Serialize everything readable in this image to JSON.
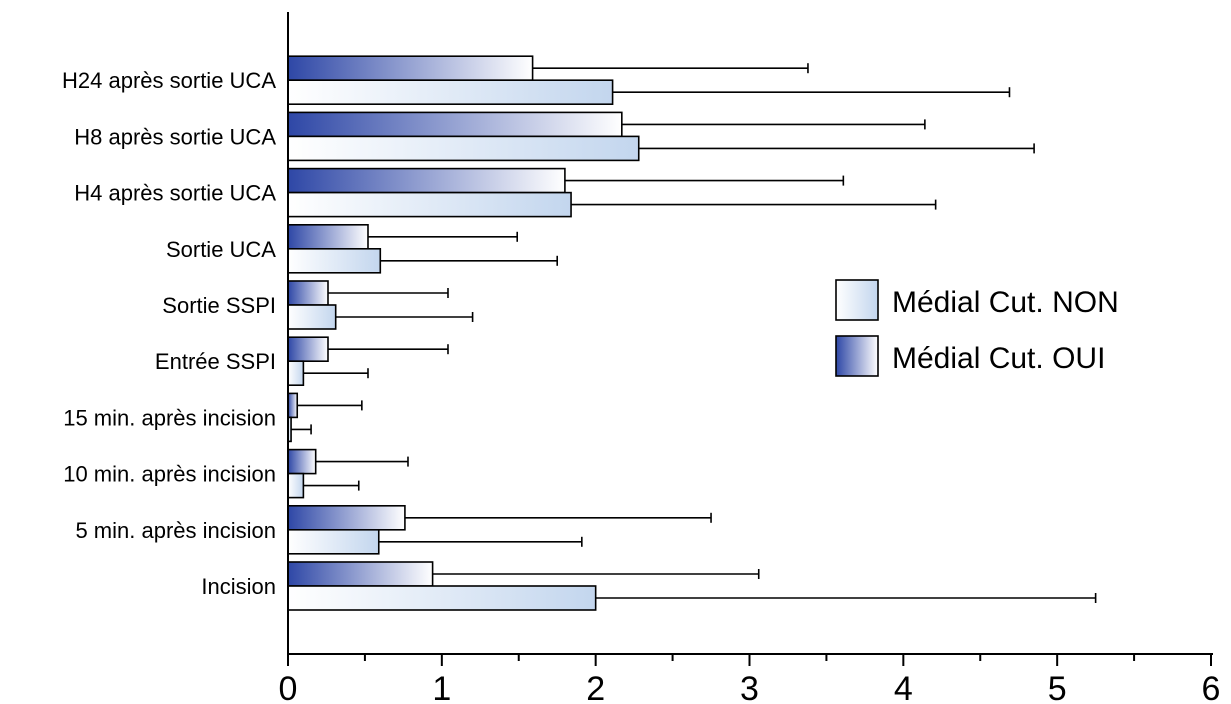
{
  "chart_data": {
    "type": "bar",
    "orientation": "horizontal",
    "categories": [
      "Incision",
      "5 min. après incision",
      "10 min. après incision",
      "15 min. après incision",
      "Entrée SSPI",
      "Sortie SSPI",
      "Sortie UCA",
      "H4 après sortie UCA",
      "H8 après sortie UCA",
      "H24 après sortie UCA"
    ],
    "series": [
      {
        "name": "Médial Cut. OUI",
        "color_from": "#2e47a6",
        "color_to": "#ffffff",
        "values": [
          0.94,
          0.76,
          0.18,
          0.06,
          0.26,
          0.26,
          0.52,
          1.8,
          2.17,
          1.59
        ],
        "errors": [
          2.12,
          1.99,
          0.6,
          0.42,
          0.78,
          0.78,
          0.97,
          1.81,
          1.97,
          1.79
        ]
      },
      {
        "name": "Médial Cut. NON",
        "color_from": "#ffffff",
        "color_to": "#c3d6ee",
        "values": [
          2.0,
          0.59,
          0.1,
          0.02,
          0.1,
          0.31,
          0.6,
          1.84,
          2.28,
          2.11
        ],
        "errors": [
          3.25,
          1.32,
          0.36,
          0.13,
          0.42,
          0.89,
          1.15,
          2.37,
          2.57,
          2.58
        ]
      }
    ],
    "xlim": [
      0,
      6
    ],
    "xticks": [
      "0",
      "1",
      "2",
      "3",
      "4",
      "5",
      "6"
    ],
    "title": "",
    "xlabel": "",
    "ylabel": "",
    "legend_position": "right",
    "grid": false
  }
}
